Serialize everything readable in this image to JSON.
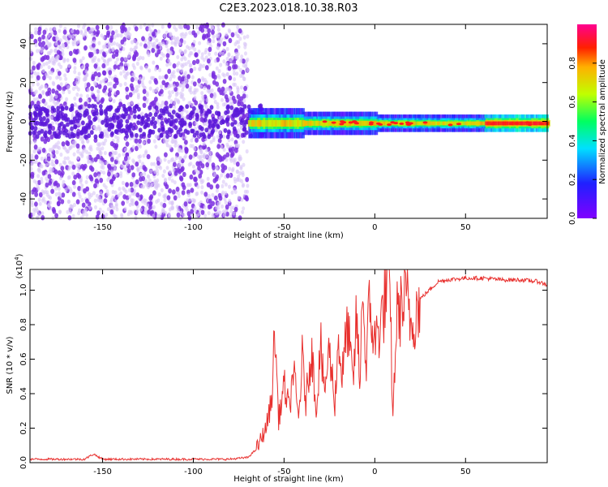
{
  "title": "C2E3.2023.018.10.38.R03",
  "colors": {
    "snr_line": "#e8302e",
    "speckle": "#7b2fe0",
    "speckle_light": "#d8c6f7"
  },
  "chart_data": [
    {
      "type": "heatmap",
      "xlabel": "Height of straight line (km)",
      "ylabel": "Frequency (Hz)",
      "xlim": [
        -190,
        95
      ],
      "ylim": [
        -50,
        50
      ],
      "xticks": [
        -150,
        -100,
        -50,
        0,
        50
      ],
      "yticks": [
        -40,
        -20,
        0,
        20,
        40
      ],
      "colorbar": {
        "label": "Normalized spectral amplitude",
        "range": [
          0,
          1
        ],
        "ticks": [
          "0.0",
          "0.2",
          "0.4",
          "0.6",
          "0.8"
        ],
        "tick_values": [
          0,
          0.2,
          0.4,
          0.6,
          0.8
        ],
        "colormap": "hsv-violet-to-magenta"
      },
      "regions": [
        {
          "x_range": [
            -190,
            -70
          ],
          "description": "noise speckle",
          "amplitude_range": [
            0.0,
            0.15
          ]
        },
        {
          "x_range": [
            -70,
            95
          ],
          "center_freq": -1,
          "half_width": [
            5,
            2
          ],
          "amplitude_range": [
            0.2,
            0.9
          ]
        }
      ]
    },
    {
      "type": "line",
      "xlabel": "Height of straight line (km)",
      "ylabel": "SNR (10 * v/v)",
      "yscale_label": "(x10",
      "yscale_exp": "4",
      "yscale_close": ")",
      "xlim": [
        -190,
        95
      ],
      "ylim": [
        0,
        1.12
      ],
      "xticks": [
        -150,
        -100,
        -50,
        0,
        50
      ],
      "yticks": [
        "0.0",
        "0.2",
        "0.4",
        "0.6",
        "0.8",
        "1.0"
      ],
      "ytick_values": [
        0,
        0.2,
        0.4,
        0.6,
        0.8,
        1.0
      ],
      "series": [
        {
          "x": [
            -190,
            -160,
            -155,
            -150,
            -120,
            -100,
            -80,
            -70,
            -65,
            -60,
            -57,
            -55,
            -53,
            -50,
            -47,
            -45,
            -42,
            -40,
            -38,
            -35,
            -32,
            -30,
            -28,
            -25,
            -22,
            -20,
            -18,
            -15,
            -12,
            -10,
            -8,
            -7,
            -5,
            -3,
            0,
            3,
            5,
            8,
            10,
            12,
            15,
            18,
            20,
            25,
            30,
            35,
            40,
            50,
            60,
            70,
            80,
            90,
            95
          ],
          "y": [
            0.02,
            0.02,
            0.05,
            0.02,
            0.02,
            0.02,
            0.02,
            0.03,
            0.08,
            0.2,
            0.35,
            0.76,
            0.25,
            0.45,
            0.3,
            0.55,
            0.25,
            0.6,
            0.35,
            0.66,
            0.3,
            0.72,
            0.4,
            0.65,
            0.35,
            0.72,
            0.5,
            0.8,
            0.45,
            0.85,
            0.4,
            1.12,
            0.55,
            0.9,
            0.7,
            0.8,
            0.9,
            1.12,
            0.25,
            0.85,
            0.9,
            0.95,
            0.8,
            0.95,
            1.0,
            1.05,
            1.06,
            1.07,
            1.07,
            1.06,
            1.06,
            1.05,
            1.03
          ]
        }
      ]
    }
  ]
}
